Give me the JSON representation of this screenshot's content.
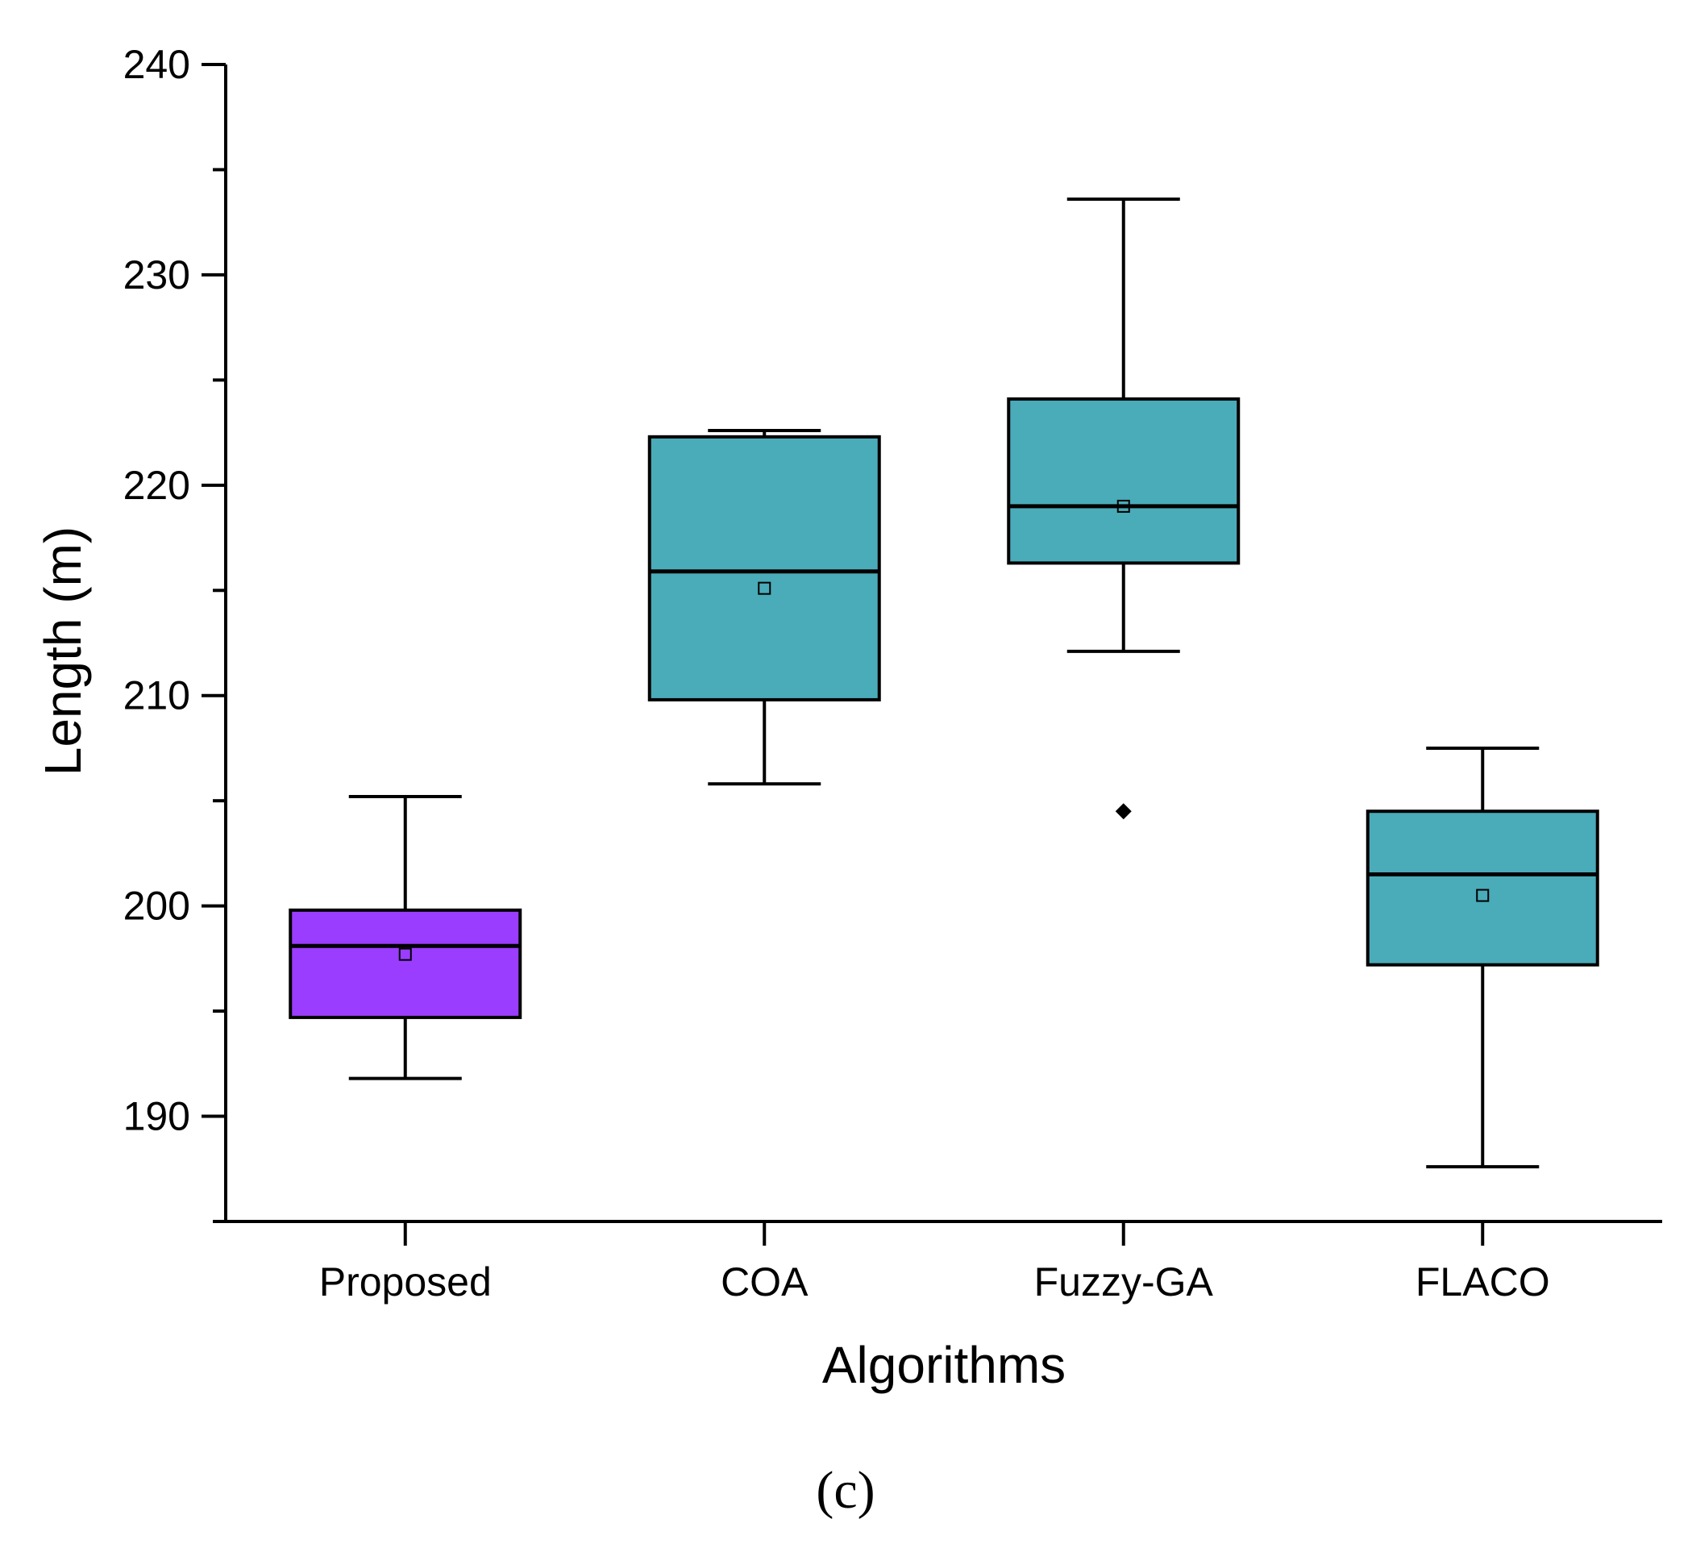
{
  "chart_data": {
    "type": "box",
    "xlabel": "Algorithms",
    "ylabel": "Length (m)",
    "ylim": [
      185,
      240
    ],
    "yticks": [
      190,
      200,
      210,
      220,
      230,
      240
    ],
    "y_minor_step": 5,
    "panel_label": "(c)",
    "categories": [
      "Proposed",
      "COA",
      "Fuzzy-GA",
      "FLACO"
    ],
    "series": [
      {
        "category": "Proposed",
        "whisker_low": 191.8,
        "q1": 194.7,
        "median": 198.1,
        "q3": 199.8,
        "whisker_high": 205.2,
        "mean": 197.7,
        "outliers": [],
        "color": "#9b3dff"
      },
      {
        "category": "COA",
        "whisker_low": 205.8,
        "q1": 209.8,
        "median": 215.9,
        "q3": 222.3,
        "whisker_high": 222.6,
        "mean": 215.1,
        "outliers": [],
        "color": "#4aabb9"
      },
      {
        "category": "Fuzzy-GA",
        "whisker_low": 212.1,
        "q1": 216.3,
        "median": 219.0,
        "q3": 224.1,
        "whisker_high": 233.6,
        "mean": 219.0,
        "outliers": [
          204.5
        ],
        "color": "#4aabb9"
      },
      {
        "category": "FLACO",
        "whisker_low": 187.6,
        "q1": 197.2,
        "median": 201.5,
        "q3": 204.5,
        "whisker_high": 207.5,
        "mean": 200.5,
        "outliers": [],
        "color": "#4aabb9"
      }
    ],
    "grid": false,
    "legend": "none"
  }
}
